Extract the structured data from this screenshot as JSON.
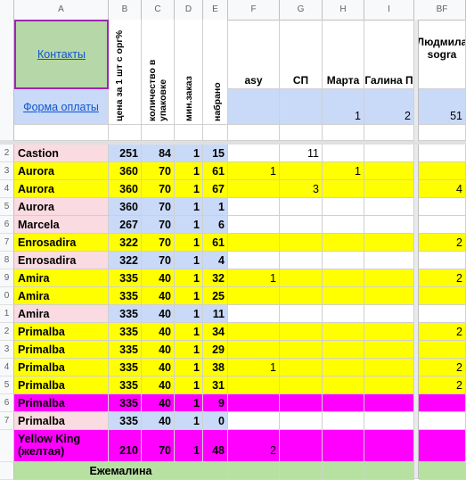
{
  "column_headers": [
    "A",
    "B",
    "C",
    "D",
    "E",
    "F",
    "G",
    "H",
    "I",
    "BF"
  ],
  "header": {
    "contacts_link": "Контакты",
    "payment_link": "Форма оплаты",
    "col_b": "цена за 1 шт с орг%",
    "col_c": "количество в упаковке",
    "col_d": "мин.заказ",
    "col_e": "набрано",
    "col_f": "asy",
    "col_g": "СП",
    "col_h": "Марта",
    "col_i": "Галина П",
    "col_bf": "Людмила sogra",
    "num_h": "1",
    "num_i": "2",
    "num_bf": "51"
  },
  "row_numbers": [
    "",
    "2",
    "3",
    "4",
    "5",
    "6",
    "7",
    "8",
    "9",
    "0",
    "1",
    "2",
    "3",
    "4",
    "5",
    "6",
    "7",
    ""
  ],
  "rows": [
    {
      "name": "Castion",
      "b": "251",
      "c": "84",
      "d": "1",
      "e": "15",
      "f": "",
      "g": "11",
      "h": "",
      "i": "",
      "bf": ""
    },
    {
      "name": "Aurora",
      "b": "360",
      "c": "70",
      "d": "1",
      "e": "61",
      "f": "1",
      "g": "",
      "h": "1",
      "i": "",
      "bf": ""
    },
    {
      "name": "Aurora",
      "b": "360",
      "c": "70",
      "d": "1",
      "e": "67",
      "f": "",
      "g": "3",
      "h": "",
      "i": "",
      "bf": "4"
    },
    {
      "name": "Aurora",
      "b": "360",
      "c": "70",
      "d": "1",
      "e": "1",
      "f": "",
      "g": "",
      "h": "",
      "i": "",
      "bf": ""
    },
    {
      "name": "Marcela",
      "b": "267",
      "c": "70",
      "d": "1",
      "e": "6",
      "f": "",
      "g": "",
      "h": "",
      "i": "",
      "bf": ""
    },
    {
      "name": "Enrosadira",
      "b": "322",
      "c": "70",
      "d": "1",
      "e": "61",
      "f": "",
      "g": "",
      "h": "",
      "i": "",
      "bf": "2"
    },
    {
      "name": "Enrosadira",
      "b": "322",
      "c": "70",
      "d": "1",
      "e": "4",
      "f": "",
      "g": "",
      "h": "",
      "i": "",
      "bf": ""
    },
    {
      "name": "Amira",
      "b": "335",
      "c": "40",
      "d": "1",
      "e": "32",
      "f": "1",
      "g": "",
      "h": "",
      "i": "",
      "bf": "2"
    },
    {
      "name": "Amira",
      "b": "335",
      "c": "40",
      "d": "1",
      "e": "25",
      "f": "",
      "g": "",
      "h": "",
      "i": "",
      "bf": ""
    },
    {
      "name": "Amira",
      "b": "335",
      "c": "40",
      "d": "1",
      "e": "11",
      "f": "",
      "g": "",
      "h": "",
      "i": "",
      "bf": ""
    },
    {
      "name": "Primalba",
      "b": "335",
      "c": "40",
      "d": "1",
      "e": "34",
      "f": "",
      "g": "",
      "h": "",
      "i": "",
      "bf": "2"
    },
    {
      "name": "Primalba",
      "b": "335",
      "c": "40",
      "d": "1",
      "e": "29",
      "f": "",
      "g": "",
      "h": "",
      "i": "",
      "bf": ""
    },
    {
      "name": "Primalba",
      "b": "335",
      "c": "40",
      "d": "1",
      "e": "38",
      "f": "1",
      "g": "",
      "h": "",
      "i": "",
      "bf": "2"
    },
    {
      "name": "Primalba",
      "b": "335",
      "c": "40",
      "d": "1",
      "e": "31",
      "f": "",
      "g": "",
      "h": "",
      "i": "",
      "bf": "2"
    },
    {
      "name": "Primalba",
      "b": "335",
      "c": "40",
      "d": "1",
      "e": "9",
      "f": "",
      "g": "",
      "h": "",
      "i": "",
      "bf": ""
    },
    {
      "name": "Primalba",
      "b": "335",
      "c": "40",
      "d": "1",
      "e": "0",
      "f": "",
      "g": "",
      "h": "",
      "i": "",
      "bf": ""
    },
    {
      "name": "Yellow King (желтая)",
      "b": "210",
      "c": "70",
      "d": "1",
      "e": "48",
      "f": "2",
      "g": "",
      "h": "",
      "i": "",
      "bf": ""
    }
  ],
  "footer_label": "Ежемалина",
  "colors": {
    "pink": "#fadbe1",
    "yellow": "#ffff00",
    "magenta": "#ff00ff",
    "blue": "#c9daf8",
    "green": "#b7e1a1",
    "lightgreen": "#b6d7a8"
  }
}
